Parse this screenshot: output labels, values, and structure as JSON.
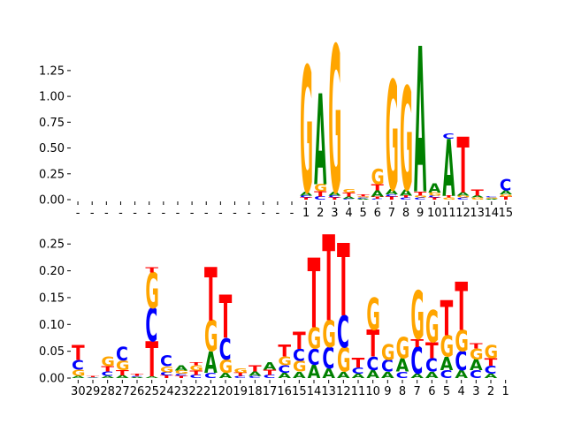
{
  "colors": {
    "A": "#008000",
    "C": "#0000ff",
    "G": "#ffa500",
    "T": "#ff0000"
  },
  "chart_data": [
    {
      "type": "sequence-logo",
      "title": "",
      "xlabel": "",
      "ylabel": "",
      "ylim": [
        0,
        1.42
      ],
      "yticks": [
        "0.00",
        "0.25",
        "0.50",
        "0.75",
        "1.00",
        "1.25"
      ],
      "positions": [
        "-",
        "-",
        "-",
        "-",
        "-",
        "-",
        "-",
        "-",
        "-",
        "-",
        "-",
        "-",
        "-",
        "-",
        "-",
        "-",
        "1",
        "2",
        "3",
        "4",
        "5",
        "6",
        "7",
        "8",
        "9",
        "10",
        "11",
        "12",
        "13",
        "14",
        "15"
      ],
      "columns": [
        [],
        [],
        [],
        [],
        [],
        [],
        [],
        [],
        [],
        [],
        [],
        [],
        [],
        [],
        [],
        [],
        [
          [
            "T",
            0.02
          ],
          [
            "C",
            0.02
          ],
          [
            "A",
            0.04
          ],
          [
            "G",
            1.22
          ]
        ],
        [
          [
            "C",
            0.03
          ],
          [
            "T",
            0.05
          ],
          [
            "G",
            0.07
          ],
          [
            "A",
            0.88
          ]
        ],
        [
          [
            "T",
            0.02
          ],
          [
            "C",
            0.02
          ],
          [
            "A",
            0.04
          ],
          [
            "G",
            1.42
          ]
        ],
        [
          [
            "C",
            0.01
          ],
          [
            "A",
            0.02
          ],
          [
            "T",
            0.04
          ],
          [
            "G",
            0.03
          ]
        ],
        [
          [
            "A",
            0.01
          ],
          [
            "C",
            0.01
          ],
          [
            "G",
            0.01
          ],
          [
            "T",
            0.02
          ]
        ],
        [
          [
            "C",
            0.01
          ],
          [
            "T",
            0.02
          ],
          [
            "A",
            0.06
          ],
          [
            "T",
            0.06
          ],
          [
            "G",
            0.15
          ]
        ],
        [
          [
            "T",
            0.03
          ],
          [
            "C",
            0.02
          ],
          [
            "A",
            0.05
          ],
          [
            "G",
            1.06
          ]
        ],
        [
          [
            "C",
            0.02
          ],
          [
            "T",
            0.02
          ],
          [
            "A",
            0.06
          ],
          [
            "G",
            1.0
          ]
        ],
        [
          [
            "C",
            0.02
          ],
          [
            "G",
            0.02
          ],
          [
            "T",
            0.04
          ],
          [
            "A",
            1.41
          ]
        ],
        [
          [
            "T",
            0.02
          ],
          [
            "C",
            0.02
          ],
          [
            "G",
            0.03
          ],
          [
            "A",
            0.09
          ]
        ],
        [
          [
            "G",
            0.02
          ],
          [
            "T",
            0.02
          ],
          [
            "A",
            0.55
          ],
          [
            "C",
            0.05
          ]
        ],
        [
          [
            "C",
            0.02
          ],
          [
            "G",
            0.02
          ],
          [
            "A",
            0.03
          ],
          [
            "T",
            0.54
          ]
        ],
        [
          [
            "G",
            0.02
          ],
          [
            "A",
            0.02
          ],
          [
            "T",
            0.06
          ]
        ],
        [
          [
            "A",
            0.01
          ],
          [
            "G",
            0.01
          ],
          [
            "C",
            0.01
          ]
        ],
        [
          [
            "T",
            0.03
          ],
          [
            "G",
            0.02
          ],
          [
            "A",
            0.04
          ],
          [
            "C",
            0.11
          ]
        ]
      ],
      "xtick_labels": [
        "-",
        "-",
        "-",
        "-",
        "-",
        "-",
        "-",
        "-",
        "-",
        "-",
        "-",
        "-",
        "-",
        "-",
        "-",
        "-",
        "1",
        "2",
        "3",
        "4",
        "5",
        "6",
        "7",
        "8",
        "9",
        "10",
        "11",
        "12",
        "13",
        "14",
        "15"
      ]
    },
    {
      "type": "sequence-logo",
      "title": "",
      "xlabel": "",
      "ylabel": "",
      "ylim": [
        0,
        0.28
      ],
      "yticks": [
        "0.00",
        "0.05",
        "0.10",
        "0.15",
        "0.20",
        "0.25"
      ],
      "positions": [
        "30",
        "29",
        "28",
        "27",
        "26",
        "25",
        "24",
        "23",
        "22",
        "21",
        "20",
        "19",
        "18",
        "17",
        "16",
        "15",
        "14",
        "13",
        "12",
        "11",
        "10",
        "9",
        "8",
        "7",
        "6",
        "5",
        "4",
        "3",
        "2",
        "1"
      ],
      "columns": [
        [
          [
            "A",
            0.004
          ],
          [
            "G",
            0.012
          ],
          [
            "C",
            0.018
          ],
          [
            "T",
            0.028
          ]
        ],
        [
          [
            "A",
            0.001
          ],
          [
            "C",
            0.001
          ],
          [
            "T",
            0.002
          ]
        ],
        [
          [
            "A",
            0.004
          ],
          [
            "C",
            0.008
          ],
          [
            "T",
            0.01
          ],
          [
            "G",
            0.018
          ]
        ],
        [
          [
            "A",
            0.005
          ],
          [
            "T",
            0.01
          ],
          [
            "G",
            0.018
          ],
          [
            "C",
            0.026
          ]
        ],
        [
          [
            "A",
            0.002
          ],
          [
            "C",
            0.002
          ],
          [
            "T",
            0.004
          ]
        ],
        [
          [
            "A",
            0.003
          ],
          [
            "T",
            0.065
          ],
          [
            "C",
            0.063
          ],
          [
            "G",
            0.066
          ],
          [
            "T",
            0.01
          ]
        ],
        [
          [
            "T",
            0.005
          ],
          [
            "C",
            0.006
          ],
          [
            "G",
            0.011
          ],
          [
            "C",
            0.02
          ]
        ],
        [
          [
            "T",
            0.004
          ],
          [
            "C",
            0.004
          ],
          [
            "G",
            0.006
          ],
          [
            "A",
            0.01
          ]
        ],
        [
          [
            "C",
            0.006
          ],
          [
            "T",
            0.008
          ],
          [
            "G",
            0.01
          ],
          [
            "T",
            0.005
          ]
        ],
        [
          [
            "C",
            0.01
          ],
          [
            "A",
            0.04
          ],
          [
            "G",
            0.058
          ],
          [
            "T",
            0.1
          ]
        ],
        [
          [
            "A",
            0.01
          ],
          [
            "G",
            0.025
          ],
          [
            "C",
            0.04
          ],
          [
            "T",
            0.08
          ]
        ],
        [
          [
            "C",
            0.004
          ],
          [
            "T",
            0.006
          ],
          [
            "G",
            0.008
          ]
        ],
        [
          [
            "C",
            0.004
          ],
          [
            "A",
            0.008
          ],
          [
            "T",
            0.012
          ]
        ],
        [
          [
            "C",
            0.006
          ],
          [
            "T",
            0.01
          ],
          [
            "A",
            0.014
          ]
        ],
        [
          [
            "A",
            0.01
          ],
          [
            "C",
            0.014
          ],
          [
            "G",
            0.016
          ],
          [
            "T",
            0.022
          ]
        ],
        [
          [
            "A",
            0.012
          ],
          [
            "G",
            0.02
          ],
          [
            "C",
            0.022
          ],
          [
            "T",
            0.032
          ]
        ],
        [
          [
            "A",
            0.025
          ],
          [
            "C",
            0.03
          ],
          [
            "G",
            0.04
          ],
          [
            "T",
            0.13
          ]
        ],
        [
          [
            "A",
            0.018
          ],
          [
            "C",
            0.04
          ],
          [
            "G",
            0.05
          ],
          [
            "T",
            0.16
          ]
        ],
        [
          [
            "A",
            0.012
          ],
          [
            "G",
            0.045
          ],
          [
            "C",
            0.06
          ],
          [
            "T",
            0.135
          ]
        ],
        [
          [
            "A",
            0.008
          ],
          [
            "C",
            0.012
          ],
          [
            "T",
            0.018
          ]
        ],
        [
          [
            "A",
            0.015
          ],
          [
            "C",
            0.025
          ],
          [
            "T",
            0.05
          ],
          [
            "G",
            0.06
          ]
        ],
        [
          [
            "A",
            0.012
          ],
          [
            "C",
            0.022
          ],
          [
            "G",
            0.03
          ]
        ],
        [
          [
            "C",
            0.012
          ],
          [
            "A",
            0.025
          ],
          [
            "G",
            0.04
          ]
        ],
        [
          [
            "A",
            0.008
          ],
          [
            "C",
            0.05
          ],
          [
            "T",
            0.015
          ],
          [
            "G",
            0.09
          ]
        ],
        [
          [
            "A",
            0.012
          ],
          [
            "C",
            0.025
          ],
          [
            "T",
            0.03
          ],
          [
            "G",
            0.06
          ]
        ],
        [
          [
            "C",
            0.015
          ],
          [
            "A",
            0.025
          ],
          [
            "G",
            0.04
          ],
          [
            "T",
            0.065
          ]
        ],
        [
          [
            "A",
            0.015
          ],
          [
            "C",
            0.035
          ],
          [
            "G",
            0.04
          ],
          [
            "T",
            0.09
          ]
        ],
        [
          [
            "C",
            0.015
          ],
          [
            "A",
            0.02
          ],
          [
            "G",
            0.02
          ],
          [
            "T",
            0.01
          ]
        ],
        [
          [
            "A",
            0.008
          ],
          [
            "C",
            0.015
          ],
          [
            "T",
            0.014
          ],
          [
            "G",
            0.025
          ]
        ],
        []
      ],
      "xtick_labels": [
        "30",
        "29",
        "28",
        "27",
        "26",
        "25",
        "24",
        "23",
        "22",
        "21",
        "20",
        "19",
        "18",
        "17",
        "16",
        "15",
        "14",
        "13",
        "12",
        "11",
        "10",
        "9",
        "8",
        "7",
        "6",
        "5",
        "4",
        "3",
        "2",
        "1"
      ]
    }
  ]
}
